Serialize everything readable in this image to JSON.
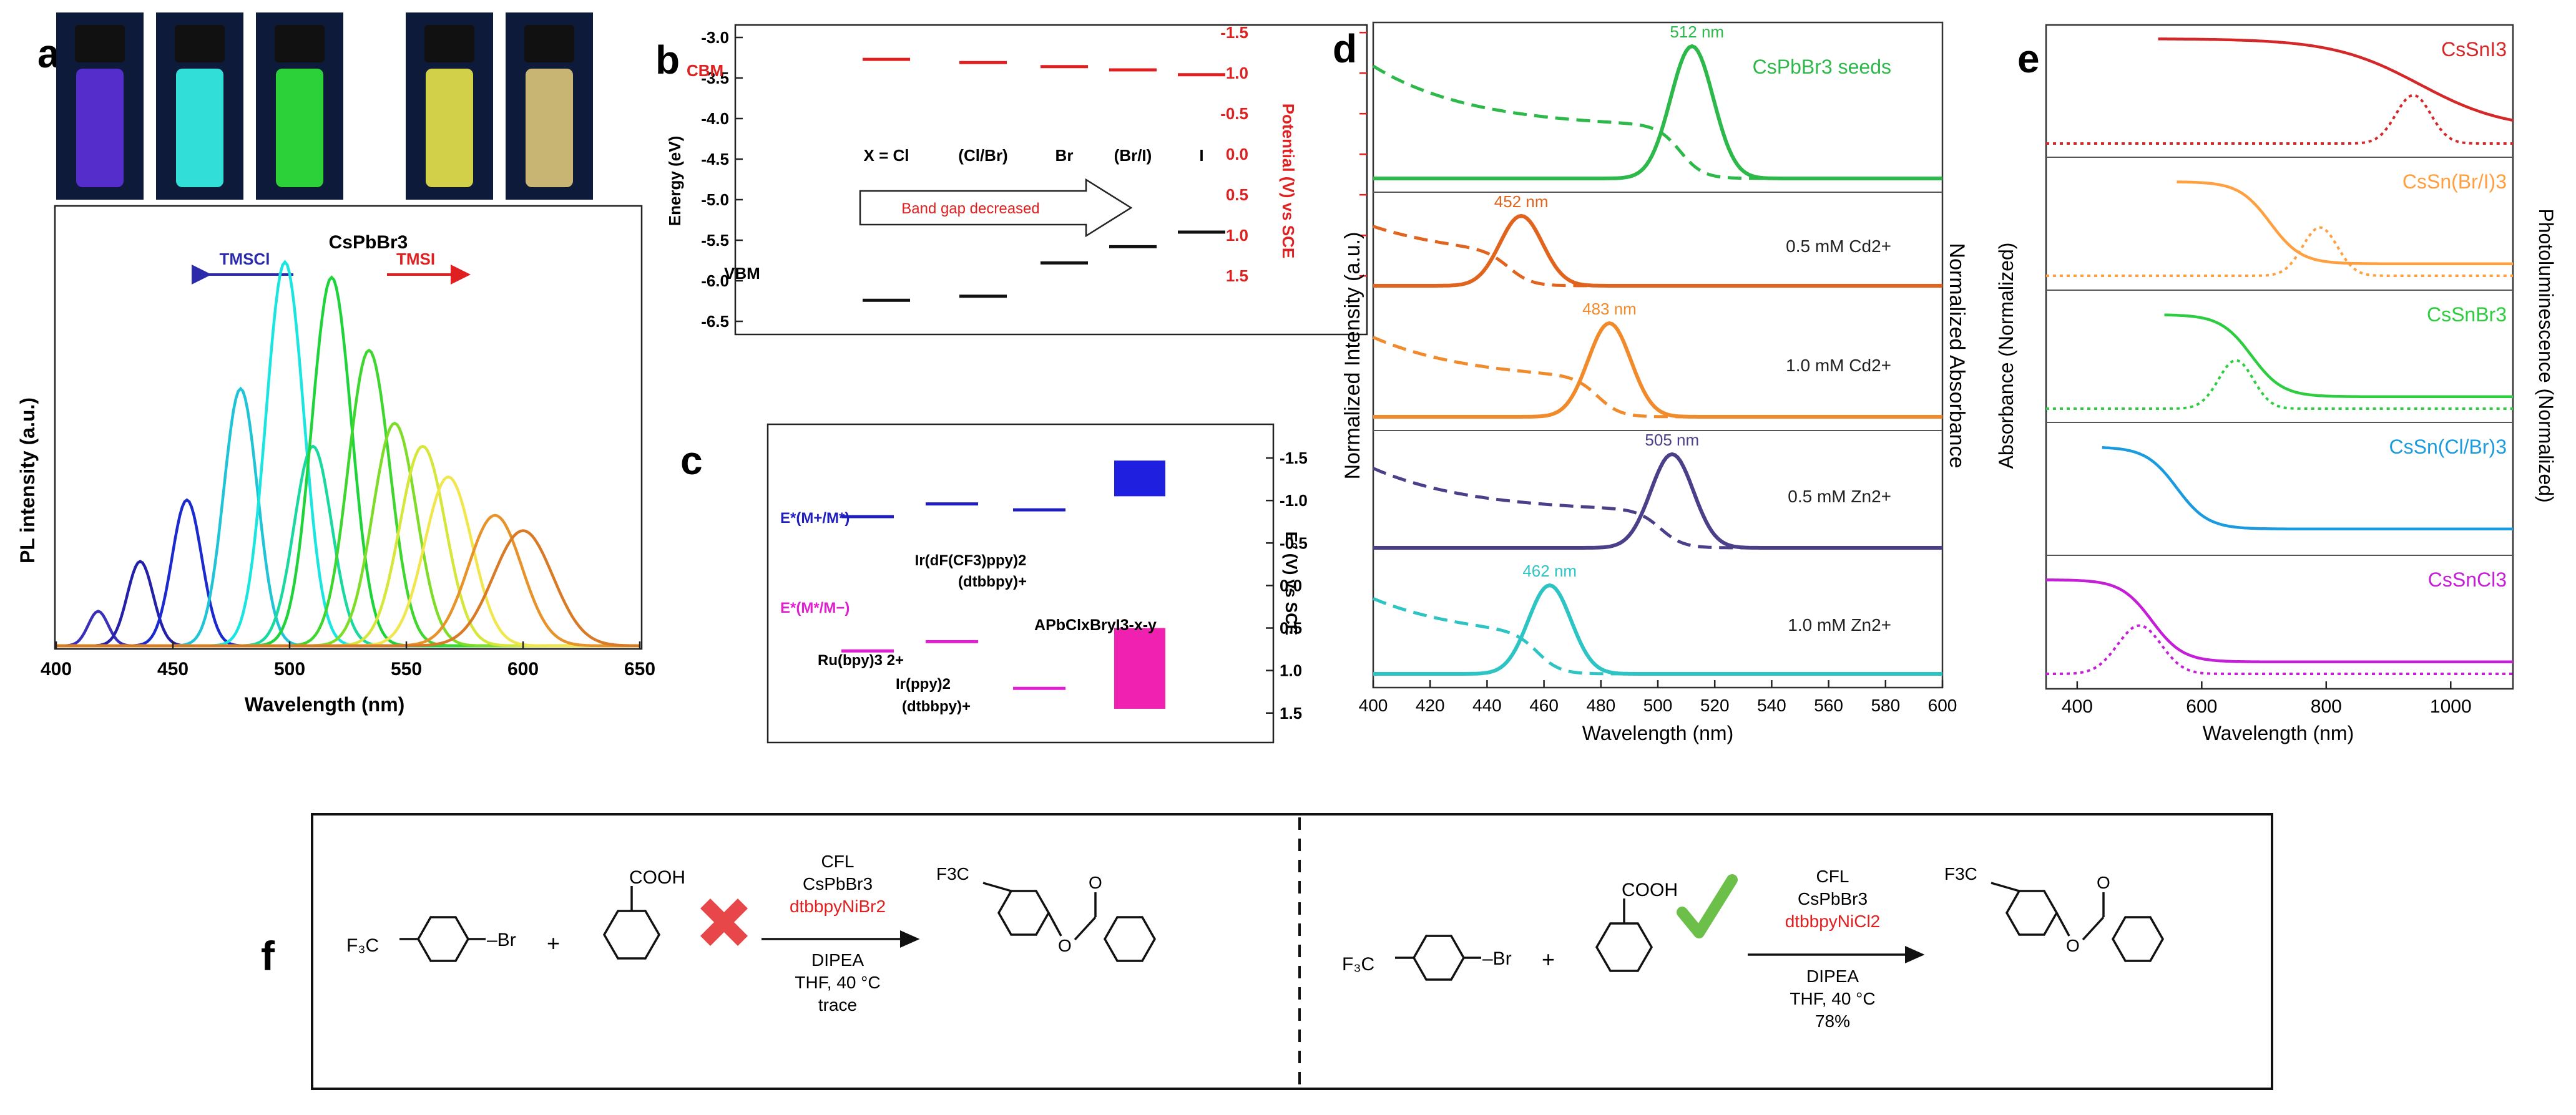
{
  "panels": {
    "a": {
      "label": "a",
      "title": "CsPbBr3",
      "xlabel": "Wavelength (nm)",
      "ylabel": "PL intensity (a.u.)",
      "xticks": [
        "400",
        "450",
        "500",
        "550",
        "600",
        "650"
      ],
      "arrow_left_label": "TMSCl",
      "arrow_right_label": "TMSI",
      "vial_colors": [
        "#5b2fd8",
        "#35f0e6",
        "#2fdf3a",
        "#e3e04a",
        "#d8c27a"
      ]
    },
    "b": {
      "label": "b",
      "ylabel_left": "Energy (eV)",
      "ylabel_right": "Potential (V) vs SCE",
      "left_ticks": [
        "-3.0",
        "-3.5",
        "-4.0",
        "-4.5",
        "-5.0",
        "-5.5",
        "-6.0",
        "-6.5"
      ],
      "right_ticks": [
        "-1.5",
        "-1.0",
        "-0.5",
        "0.0",
        "0.5",
        "1.0",
        "1.5"
      ],
      "cbm_label": "CBM",
      "vbm_label": "VBM",
      "compositions": [
        "X = Cl",
        "(Cl/Br)",
        "Br",
        "(Br/I)",
        "I"
      ],
      "arrow_text": "Band gap decreased"
    },
    "c": {
      "label": "c",
      "ylabel_right": "E° (V) vs SCE",
      "right_ticks": [
        "-1.5",
        "-1.0",
        "-0.5",
        "0.0",
        "0.5",
        "1.0",
        "1.5"
      ],
      "label_ox": "E*(M+/M*)",
      "label_red": "E*(M*/M−)",
      "label_ru": "Ru(bpy)3 2+",
      "label_ir1_a": "Ir(dF(CF3)ppy)2",
      "label_ir1_b": "(dtbbpy)+",
      "label_ir2_a": "Ir(ppy)2",
      "label_ir2_b": "(dtbbpy)+",
      "label_perov": "APbClxBryI3-x-y"
    },
    "d": {
      "label": "d",
      "ylabel_left": "Normalized Intensity (a.u.)",
      "ylabel_right": "Normalized Absorbance",
      "xlabel": "Wavelength (nm)",
      "xticks": [
        "400",
        "420",
        "440",
        "460",
        "480",
        "500",
        "520",
        "540",
        "560",
        "580",
        "600"
      ],
      "rows": [
        {
          "name": "CsPbBr3 seeds",
          "peak": "512 nm",
          "color": "#2db84a"
        },
        {
          "name": "0.5 mM Cd2+",
          "peak": "452 nm",
          "color": "#e0641e"
        },
        {
          "name": "1.0 mM Cd2+",
          "peak": "483 nm",
          "color": "#f08a2a"
        },
        {
          "name": "0.5 mM Zn2+",
          "peak": "505 nm",
          "color": "#4a3f88"
        },
        {
          "name": "1.0 mM Zn2+",
          "peak": "462 nm",
          "color": "#2ec4c4"
        }
      ]
    },
    "e": {
      "label": "e",
      "ylabel_left": "Absorbance (Normalized)",
      "ylabel_right": "Photoluminescence (Normalized)",
      "xlabel": "Wavelength (nm)",
      "xticks": [
        "400",
        "600",
        "800",
        "1000"
      ],
      "rows": [
        {
          "name": "CsSnI3",
          "color": "#d62728"
        },
        {
          "name": "CsSn(Br/I)3",
          "color": "#ff9f40"
        },
        {
          "name": "CsSnBr3",
          "color": "#2ecc40"
        },
        {
          "name": "CsSn(Cl/Br)3",
          "color": "#1a9be0"
        },
        {
          "name": "CsSnCl3",
          "color": "#c41fd6"
        }
      ]
    },
    "f": {
      "label": "f",
      "left": {
        "reagent": "F3C–C6H4–Br",
        "acid": "COOH",
        "cond1": "CFL",
        "cond2": "CsPbBr3",
        "catalyst": "dtbbpyNiBr2",
        "cond3": "DIPEA",
        "cond4": "THF, 40 °C",
        "result": "trace",
        "product_cf3": "F3C"
      },
      "right": {
        "reagent": "F3C–C6H4–Br",
        "acid": "COOH",
        "cond1": "CFL",
        "cond2": "CsPbBr3",
        "catalyst": "dtbbpyNiCl2",
        "cond3": "DIPEA",
        "cond4": "THF, 40 °C",
        "result": "78%",
        "product_cf3": "F3C"
      }
    }
  },
  "chart_data": [
    {
      "type": "line",
      "panel": "a",
      "title": "CsPbBr3",
      "xlabel": "Wavelength (nm)",
      "ylabel": "PL intensity (a.u.)",
      "xlim": [
        400,
        650
      ],
      "ylim": [
        0,
        1
      ],
      "series": [
        {
          "name": "PL 418 nm",
          "peak": 418,
          "fwhm": 10,
          "height": 0.09,
          "color": "#3a2fb8"
        },
        {
          "name": "PL 436 nm",
          "peak": 436,
          "fwhm": 13,
          "height": 0.22,
          "color": "#2420a8"
        },
        {
          "name": "PL 456 nm",
          "peak": 456,
          "fwhm": 15,
          "height": 0.38,
          "color": "#1a2ad0"
        },
        {
          "name": "PL 479 nm",
          "peak": 479,
          "fwhm": 17,
          "height": 0.67,
          "color": "#1fc4d6"
        },
        {
          "name": "PL 498 nm",
          "peak": 498,
          "fwhm": 19,
          "height": 1.0,
          "color": "#19e6e0"
        },
        {
          "name": "PL 510 nm",
          "peak": 510,
          "fwhm": 19,
          "height": 0.52,
          "color": "#19d9a0"
        },
        {
          "name": "PL 518 nm",
          "peak": 518,
          "fwhm": 20,
          "height": 0.96,
          "color": "#1fd43a"
        },
        {
          "name": "PL 534 nm",
          "peak": 534,
          "fwhm": 21,
          "height": 0.77,
          "color": "#3fd62f"
        },
        {
          "name": "PL 545 nm",
          "peak": 545,
          "fwhm": 22,
          "height": 0.58,
          "color": "#7fdd2a"
        },
        {
          "name": "PL 557 nm",
          "peak": 557,
          "fwhm": 23,
          "height": 0.52,
          "color": "#d6e63a"
        },
        {
          "name": "PL 568 nm",
          "peak": 568,
          "fwhm": 24,
          "height": 0.44,
          "color": "#f2e64f"
        },
        {
          "name": "PL 588 nm",
          "peak": 588,
          "fwhm": 27,
          "height": 0.34,
          "color": "#e8922a"
        },
        {
          "name": "PL 600 nm",
          "peak": 600,
          "fwhm": 30,
          "height": 0.3,
          "color": "#d87a26"
        }
      ]
    },
    {
      "type": "scatter",
      "panel": "b",
      "ylabel": "Energy (eV)",
      "ylim": [
        -6.5,
        -2.9
      ],
      "categories": [
        "X = Cl",
        "(Cl/Br)",
        "Br",
        "(Br/I)",
        "I"
      ],
      "series": [
        {
          "name": "CBM",
          "values": [
            -3.27,
            -3.31,
            -3.36,
            -3.4,
            -3.46
          ],
          "color": "#e02020"
        },
        {
          "name": "VBM",
          "values": [
            -6.24,
            -6.19,
            -5.78,
            -5.58,
            -5.4
          ],
          "color": "#111111"
        }
      ]
    },
    {
      "type": "bar",
      "panel": "c",
      "ylabel": "E° (V) vs SCE",
      "ylim": [
        1.7,
        -1.75
      ],
      "series": [
        {
          "name": "E*(M+/M*) Ru(bpy)3",
          "value": -0.81,
          "color": "#1f1fbf"
        },
        {
          "name": "E*(M+/M*) Ir(ppy)2(dtbbpy)",
          "value": -0.96,
          "color": "#1f1fbf"
        },
        {
          "name": "E*(M+/M*) Ir(dF(CF3)ppy)2(dtbbpy)",
          "value": -0.89,
          "color": "#1f1fbf"
        },
        {
          "name": "E*(M*/M−) Ru(bpy)3",
          "value": 0.77,
          "color": "#e020d0"
        },
        {
          "name": "E*(M*/M−) Ir(ppy)2(dtbbpy)",
          "value": 0.66,
          "color": "#e020d0"
        },
        {
          "name": "E*(M*/M−) Ir(dF(CF3)ppy)2(dtbbpy)",
          "value": 1.21,
          "color": "#e020d0"
        },
        {
          "name": "APbClxBryI3-x-y CB range",
          "range": [
            -1.47,
            -1.05
          ],
          "color": "#1f1fe0"
        },
        {
          "name": "APbClxBryI3-x-y VB range",
          "range": [
            0.5,
            1.45
          ],
          "color": "#f020b0"
        }
      ]
    },
    {
      "type": "line",
      "panel": "d",
      "xlabel": "Wavelength (nm)",
      "ylabel": "Normalized Intensity (a.u.)",
      "xlim": [
        400,
        600
      ],
      "series": [
        {
          "name": "CsPbBr3 seeds PL",
          "peak_nm": 512
        },
        {
          "name": "0.5 mM Cd2+ PL",
          "peak_nm": 452
        },
        {
          "name": "1.0 mM Cd2+ PL",
          "peak_nm": 483
        },
        {
          "name": "0.5 mM Zn2+ PL",
          "peak_nm": 505
        },
        {
          "name": "1.0 mM Zn2+ PL",
          "peak_nm": 462
        }
      ]
    },
    {
      "type": "line",
      "panel": "e",
      "xlabel": "Wavelength (nm)",
      "xlim": [
        350,
        1100
      ],
      "series": [
        {
          "name": "CsSnI3",
          "pl_peak_nm": 940,
          "abs_onset_nm": 950
        },
        {
          "name": "CsSn(Br/I)3",
          "pl_peak_nm": 790,
          "abs_onset_nm": 710
        },
        {
          "name": "CsSnBr3",
          "pl_peak_nm": 655,
          "abs_onset_nm": 680
        },
        {
          "name": "CsSn(Cl/Br)3",
          "abs_onset_nm": 560
        },
        {
          "name": "CsSnCl3",
          "pl_peak_nm": 500,
          "abs_onset_nm": 520
        }
      ]
    }
  ]
}
